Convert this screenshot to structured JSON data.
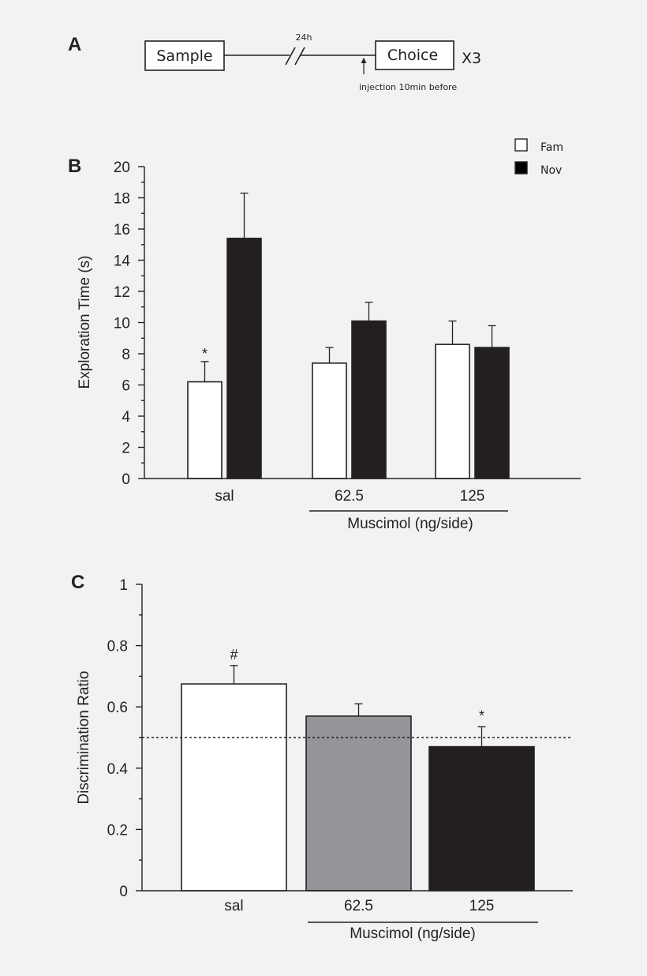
{
  "panel_a": {
    "letter": "A",
    "sample_label": "Sample",
    "delay_label": "24h",
    "choice_label": "Choice",
    "repeat_label": "X3",
    "injection_label": "injection 10min before"
  },
  "chart_data": [
    {
      "panel": "B",
      "type": "bar",
      "title": "",
      "ylabel": "Exploration Time (s)",
      "xlabel": "",
      "ylim": [
        0,
        20
      ],
      "yticks": [
        "0",
        "2",
        "4",
        "6",
        "8",
        "10",
        "12",
        "14",
        "16",
        "18",
        "20"
      ],
      "categories": [
        "sal",
        "62.5",
        "125"
      ],
      "group_label": "Muscimol (ng/side)",
      "legend_position": "top-right",
      "series": [
        {
          "name": "Fam",
          "color": "#ffffff",
          "values": [
            6.2,
            7.4,
            8.6
          ],
          "errors": [
            1.3,
            1.0,
            1.5
          ]
        },
        {
          "name": "Nov",
          "color": "#231f20",
          "values": [
            15.4,
            10.1,
            8.4
          ],
          "errors": [
            2.9,
            1.2,
            1.4
          ]
        }
      ],
      "annotations": [
        {
          "text": "*",
          "category": "sal",
          "series": "Fam"
        }
      ]
    },
    {
      "panel": "C",
      "type": "bar",
      "title": "",
      "ylabel": "Discrimination Ratio",
      "xlabel": "",
      "ylim": [
        0,
        1
      ],
      "yticks": [
        "0",
        "0.2",
        "0.4",
        "0.6",
        "0.8",
        "1"
      ],
      "categories": [
        "sal",
        "62.5",
        "125"
      ],
      "group_label": "Muscimol (ng/side)",
      "values": [
        0.675,
        0.57,
        0.47
      ],
      "errors": [
        0.06,
        0.04,
        0.065
      ],
      "colors": [
        "#ffffff",
        "#939598",
        "#231f20"
      ],
      "reference_line": 0.5,
      "annotations": [
        {
          "text": "#",
          "category": "sal"
        },
        {
          "text": "*",
          "category": "125"
        }
      ]
    }
  ]
}
